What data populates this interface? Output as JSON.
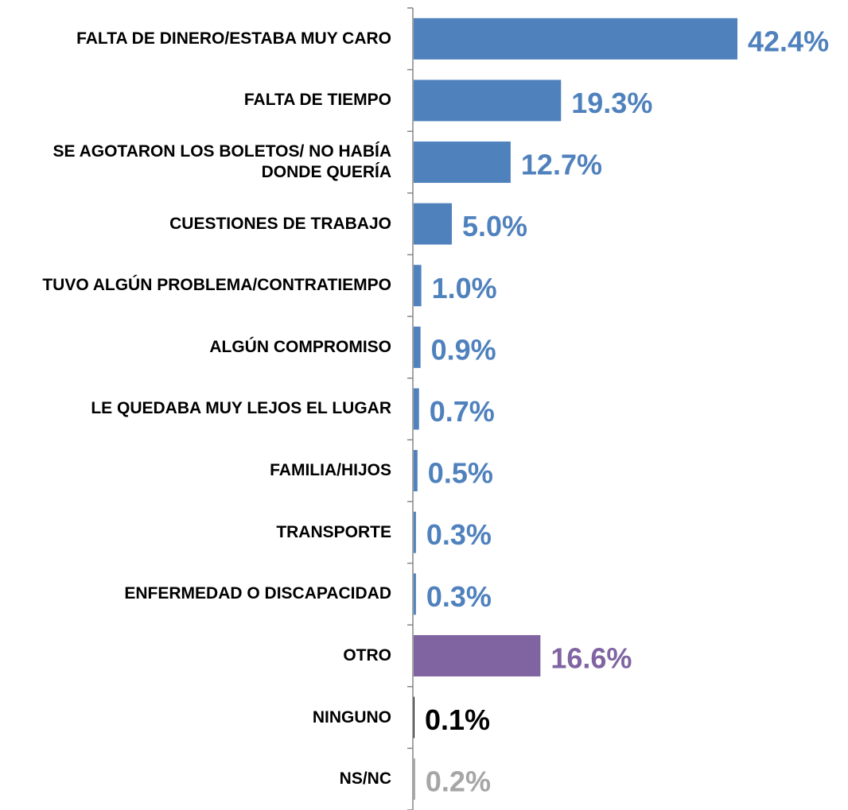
{
  "chart_data": {
    "type": "bar",
    "orientation": "horizontal",
    "categories": [
      "FALTA DE DINERO/ESTABA MUY CARO",
      "FALTA DE TIEMPO",
      "SE AGOTARON LOS BOLETOS/ NO HABÍA DONDE QUERÍA",
      "CUESTIONES DE TRABAJO",
      "TUVO ALGÚN PROBLEMA/CONTRATIEMPO",
      "ALGÚN COMPROMISO",
      "LE QUEDABA MUY LEJOS EL LUGAR",
      "FAMILIA/HIJOS",
      "TRANSPORTE",
      "ENFERMEDAD O DISCAPACIDAD",
      "OTRO",
      "NINGUNO",
      "NS/NC"
    ],
    "values": [
      42.4,
      19.3,
      12.7,
      5.0,
      1.0,
      0.9,
      0.7,
      0.5,
      0.3,
      0.3,
      16.6,
      0.1,
      0.2
    ],
    "value_labels": [
      "42.4%",
      "19.3%",
      "12.7%",
      "5.0%",
      "1.0%",
      "0.9%",
      "0.7%",
      "0.5%",
      "0.3%",
      "0.3%",
      "16.6%",
      "0.1%",
      "0.2%"
    ],
    "colors": [
      "#4f81bd",
      "#4f81bd",
      "#4f81bd",
      "#4f81bd",
      "#4f81bd",
      "#4f81bd",
      "#4f81bd",
      "#4f81bd",
      "#4f81bd",
      "#4f81bd",
      "#8064a2",
      "#000000",
      "#a6a6a6"
    ]
  }
}
